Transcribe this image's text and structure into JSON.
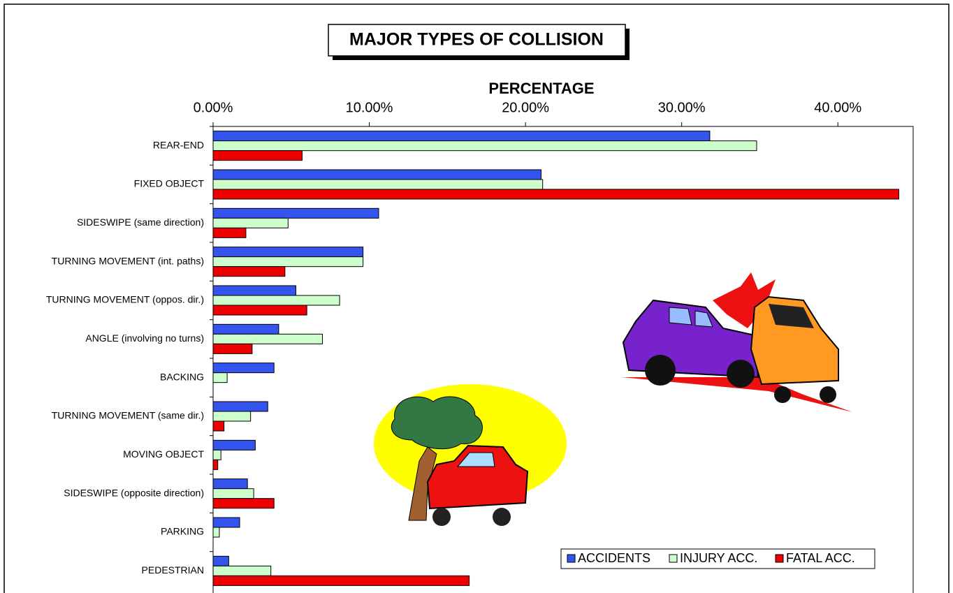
{
  "chart_data": {
    "type": "hbar",
    "title": "MAJOR TYPES OF COLLISION",
    "x_label": "PERCENTAGE",
    "categories": [
      "REAR-END",
      "FIXED OBJECT",
      "SIDESWIPE (same direction)",
      "TURNING MOVEMENT (int. paths)",
      "TURNING MOVEMENT (oppos. dir.)",
      "ANGLE (involving no turns)",
      "BACKING",
      "TURNING MOVEMENT (same dir.)",
      "MOVING OBJECT",
      "SIDESWIPE (opposite direction)",
      "PARKING",
      "PEDESTRIAN"
    ],
    "series": [
      {
        "name": "ACCIDENTS",
        "color": "#3355ee",
        "values": [
          31.8,
          21.0,
          10.6,
          9.6,
          5.3,
          4.2,
          3.9,
          3.5,
          2.7,
          2.2,
          1.7,
          1.0
        ]
      },
      {
        "name": "INJURY ACC.",
        "color": "#ccffcc",
        "values": [
          34.8,
          21.1,
          4.8,
          9.6,
          8.1,
          7.0,
          0.9,
          2.4,
          0.5,
          2.6,
          0.4,
          3.7
        ]
      },
      {
        "name": "FATAL ACC.",
        "color": "#ee0000",
        "values": [
          5.7,
          43.9,
          2.1,
          4.6,
          6.0,
          2.5,
          0,
          0.7,
          0.3,
          3.9,
          0,
          16.4
        ]
      }
    ],
    "xlim": [
      0,
      45
    ],
    "xticks": [
      {
        "value": 0,
        "label": "0.00%"
      },
      {
        "value": 10,
        "label": "10.00%"
      },
      {
        "value": 20,
        "label": "20.00%"
      },
      {
        "value": 30,
        "label": "30.00%"
      },
      {
        "value": 40,
        "label": "40.00%"
      }
    ],
    "legend": "bottom-right"
  }
}
